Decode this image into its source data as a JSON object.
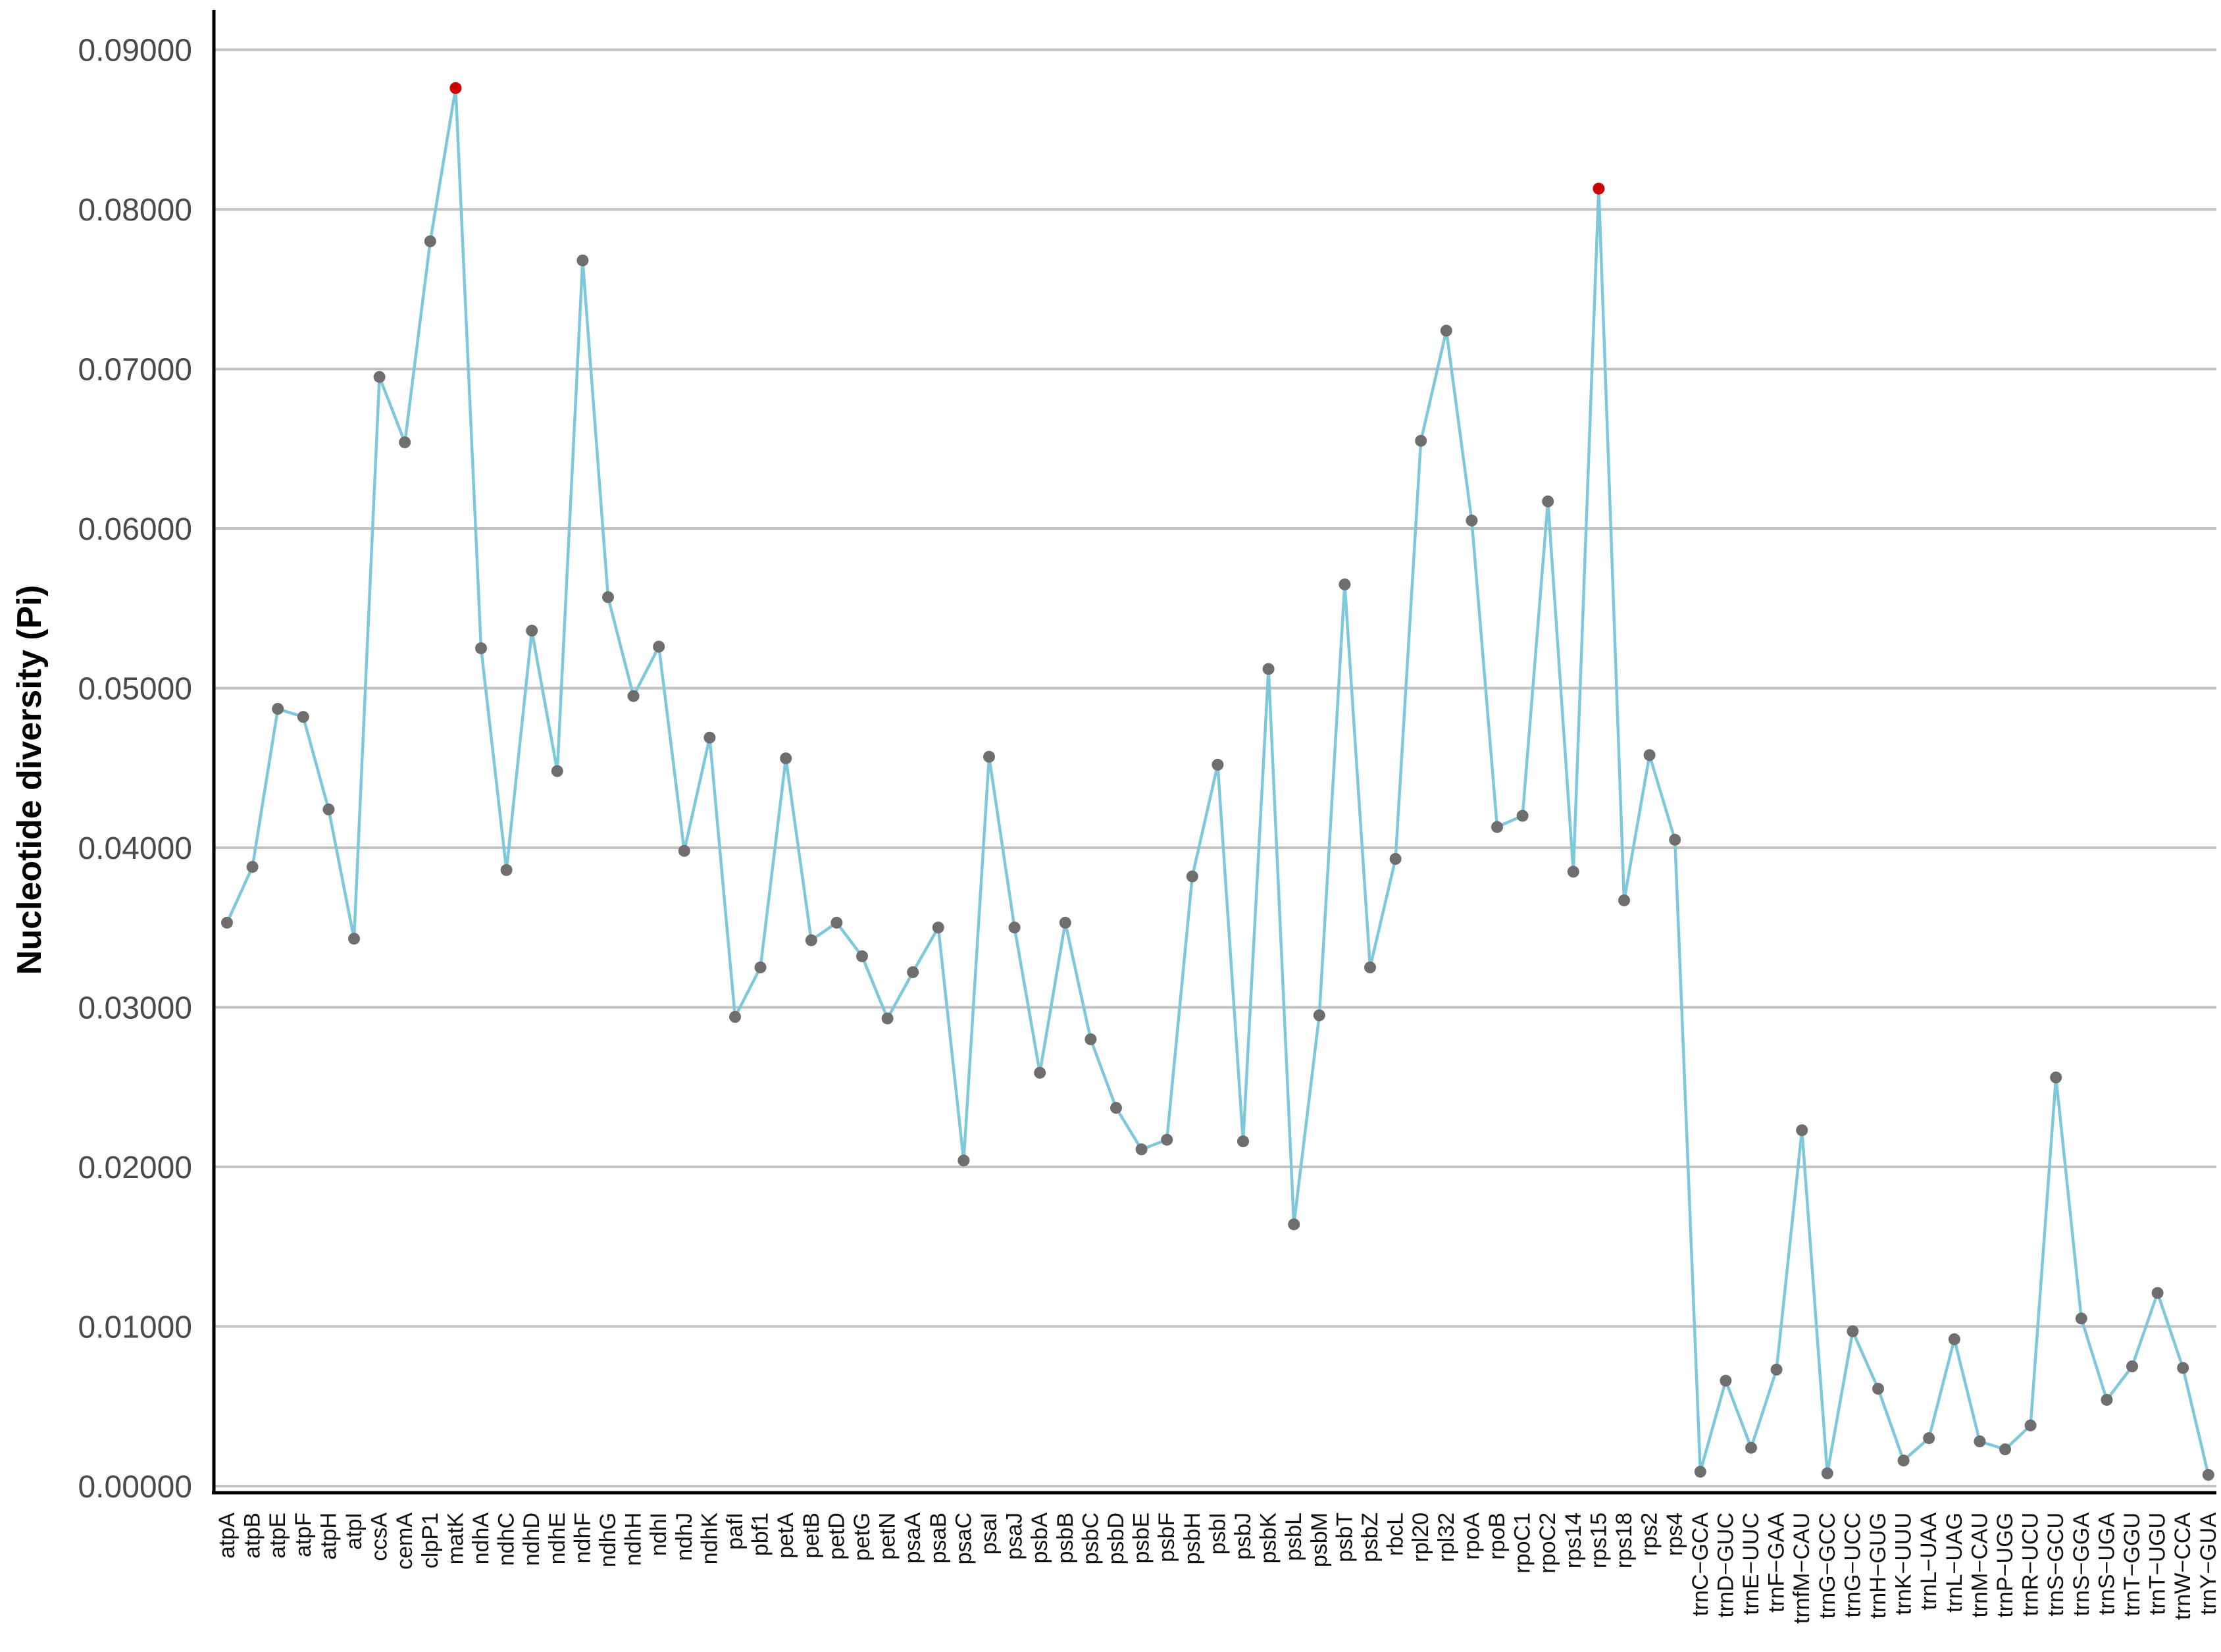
{
  "chart_data": {
    "type": "line",
    "title": "",
    "xlabel": "",
    "ylabel": "Nucleotide diversity (Pi)",
    "ylim": [
      -0.0005,
      0.0925
    ],
    "yticks": [
      "0.00000",
      "0.01000",
      "0.02000",
      "0.03000",
      "0.04000",
      "0.05000",
      "0.06000",
      "0.07000",
      "0.08000",
      "0.09000"
    ],
    "ytick_values": [
      0,
      0.01,
      0.02,
      0.03,
      0.04,
      0.05,
      0.06,
      0.07,
      0.08,
      0.09
    ],
    "grid": "horizontal",
    "legend": "none",
    "colors": {
      "line": "#7ec8dc",
      "point": "#6e6e6e",
      "highlight": "#cc0000",
      "grid": "#c2c2c2",
      "axis": "#000000"
    },
    "highlighted_points": [
      "matK",
      "rps15"
    ],
    "categories": [
      "atpA",
      "atpB",
      "atpE",
      "atpF",
      "atpH",
      "atpI",
      "ccsA",
      "cemA",
      "clpP1",
      "matK",
      "ndhA",
      "ndhC",
      "ndhD",
      "ndhE",
      "ndhF",
      "ndhG",
      "ndhH",
      "ndhI",
      "ndhJ",
      "ndhK",
      "pafI",
      "pbf1",
      "petA",
      "petB",
      "petD",
      "petG",
      "petN",
      "psaA",
      "psaB",
      "psaC",
      "psaI",
      "psaJ",
      "psbA",
      "psbB",
      "psbC",
      "psbD",
      "psbE",
      "psbF",
      "psbH",
      "psbI",
      "psbJ",
      "psbK",
      "psbL",
      "psbM",
      "psbT",
      "psbZ",
      "rbcL",
      "rpl20",
      "rpl32",
      "rpoA",
      "rpoB",
      "rpoC1",
      "rpoC2",
      "rps14",
      "rps15",
      "rps18",
      "rps2",
      "rps4",
      "trnC−GCA",
      "trnD−GUC",
      "trnE−UUC",
      "trnF−GAA",
      "trnfM−CAU",
      "trnG−GCC",
      "trnG−UCC",
      "trnH−GUG",
      "trnK−UUU",
      "trnL−UAA",
      "trnL−UAG",
      "trnM−CAU",
      "trnP−UGG",
      "trnR−UCU",
      "trnS−GCU",
      "trnS−GGA",
      "trnS−UGA",
      "trnT−GGU",
      "trnT−UGU",
      "trnW−CCA",
      "trnY−GUA"
    ],
    "series": [
      {
        "values": [
          0.0353,
          0.0388,
          0.0487,
          0.0482,
          0.0424,
          0.0343,
          0.0695,
          0.0654,
          0.078,
          0.0876,
          0.0525,
          0.0386,
          0.0536,
          0.0448,
          0.0768,
          0.0557,
          0.0495,
          0.0526,
          0.0398,
          0.0469,
          0.0294,
          0.0325,
          0.0456,
          0.0342,
          0.0353,
          0.0332,
          0.0293,
          0.0322,
          0.035,
          0.0204,
          0.0457,
          0.035,
          0.0259,
          0.0353,
          0.028,
          0.0237,
          0.0211,
          0.0217,
          0.0382,
          0.0452,
          0.0216,
          0.0512,
          0.0164,
          0.0295,
          0.0565,
          0.0325,
          0.0393,
          0.0655,
          0.0724,
          0.0605,
          0.0413,
          0.042,
          0.0617,
          0.0385,
          0.0813,
          0.0367,
          0.0458,
          0.0405,
          0.0009,
          0.0066,
          0.0024,
          0.0073,
          0.0223,
          0.0008,
          0.0097,
          0.0061,
          0.0016,
          0.003,
          0.0092,
          0.0028,
          0.0023,
          0.0038,
          0.0256,
          0.0105,
          0.0054,
          0.0075,
          0.0121,
          0.0074,
          0.0007
        ]
      }
    ]
  }
}
